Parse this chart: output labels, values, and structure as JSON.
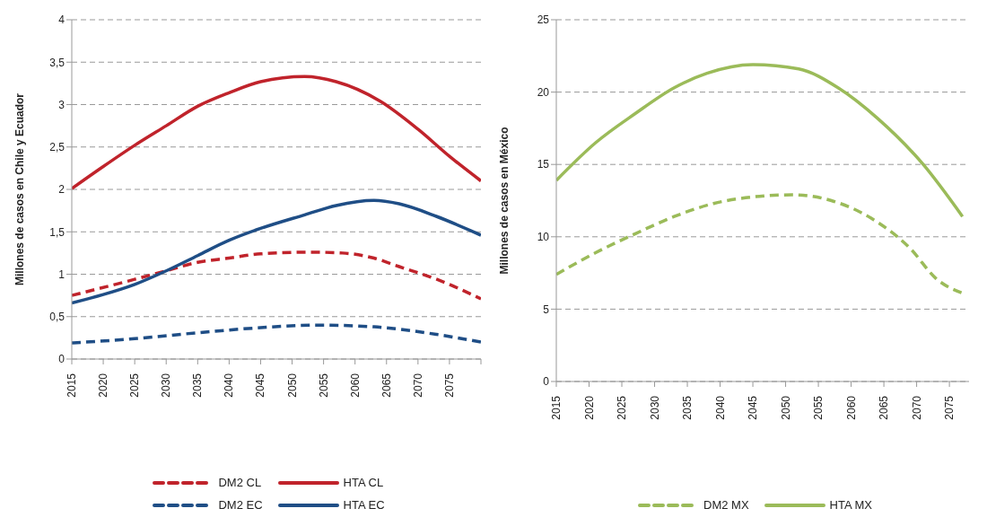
{
  "chart_data": [
    {
      "type": "line",
      "ylabel": "Millones de casos en Chile y Ecuador",
      "xlim": [
        2015,
        2080
      ],
      "xticks": [
        2015,
        2020,
        2025,
        2030,
        2035,
        2040,
        2045,
        2050,
        2055,
        2060,
        2065,
        2070,
        2075,
        {
          "value": 2080,
          "label": null
        }
      ],
      "ylim": [
        0,
        4
      ],
      "yticks": [
        0,
        {
          "value": 0.5,
          "label": "0,5"
        },
        1,
        {
          "value": 1.5,
          "label": "1,5"
        },
        2,
        {
          "value": 2.5,
          "label": "2,5"
        },
        3,
        {
          "value": 3.5,
          "label": "3,5"
        },
        4
      ],
      "grid": "y",
      "legend": "bottom",
      "marker": "none",
      "series": [
        {
          "name": "DM2 CL",
          "color": "#c0232b",
          "line_style": "dashed",
          "x": [
            2015,
            2025,
            2030,
            2035,
            2040,
            2045,
            2053,
            2058,
            2063,
            2067,
            2073,
            2080
          ],
          "values": [
            0.75,
            0.94,
            1.04,
            1.14,
            1.19,
            1.24,
            1.26,
            1.25,
            1.19,
            1.09,
            0.94,
            0.71
          ]
        },
        {
          "name": "HTA CL",
          "color": "#c0232b",
          "line_style": "solid",
          "x": [
            2015,
            2020,
            2025,
            2030,
            2035,
            2040,
            2045,
            2052,
            2057,
            2064,
            2070,
            2075,
            2080
          ],
          "values": [
            2.01,
            2.27,
            2.52,
            2.75,
            2.98,
            3.14,
            3.27,
            3.33,
            3.27,
            3.04,
            2.71,
            2.39,
            2.1
          ]
        },
        {
          "name": "DM2 EC",
          "color": "#1f4e86",
          "line_style": "dashed",
          "x": [
            2015,
            2025,
            2035,
            2045,
            2054,
            2063,
            2073,
            2080
          ],
          "values": [
            0.19,
            0.24,
            0.31,
            0.37,
            0.4,
            0.38,
            0.29,
            0.2
          ]
        },
        {
          "name": "HTA EC",
          "color": "#1f4e86",
          "line_style": "solid",
          "x": [
            2015,
            2020,
            2025,
            2030,
            2035,
            2040,
            2045,
            2052,
            2057,
            2063,
            2067,
            2073,
            2080
          ],
          "values": [
            0.66,
            0.76,
            0.88,
            1.04,
            1.22,
            1.4,
            1.54,
            1.7,
            1.81,
            1.87,
            1.83,
            1.68,
            1.46
          ]
        }
      ]
    },
    {
      "type": "line",
      "ylabel": "Millones de casos en México",
      "xlim": [
        2015,
        2078
      ],
      "xticks": [
        2015,
        2020,
        2025,
        2030,
        2035,
        2040,
        2045,
        2050,
        2055,
        2060,
        2065,
        2070,
        2075
      ],
      "ylim": [
        0,
        25
      ],
      "yticks": [
        0,
        5,
        10,
        15,
        20,
        25
      ],
      "grid": "y",
      "legend": "bottom",
      "marker": "none",
      "series": [
        {
          "name": "DM2 MX",
          "color": "#9bbb59",
          "line_style": "dashed",
          "x": [
            2015,
            2021,
            2027,
            2033,
            2039,
            2046,
            2051,
            2057,
            2063,
            2069,
            2073,
            2077
          ],
          "values": [
            7.4,
            8.9,
            10.2,
            11.4,
            12.3,
            12.8,
            12.9,
            12.5,
            11.3,
            9.2,
            7.1,
            6.1
          ]
        },
        {
          "name": "HTA MX",
          "color": "#9bbb59",
          "line_style": "solid",
          "x": [
            2015,
            2021,
            2027,
            2033,
            2038,
            2045,
            2052,
            2058,
            2064,
            2071,
            2077
          ],
          "values": [
            13.9,
            16.5,
            18.5,
            20.3,
            21.3,
            21.9,
            21.6,
            20.3,
            18.2,
            15,
            11.4
          ]
        }
      ]
    }
  ]
}
